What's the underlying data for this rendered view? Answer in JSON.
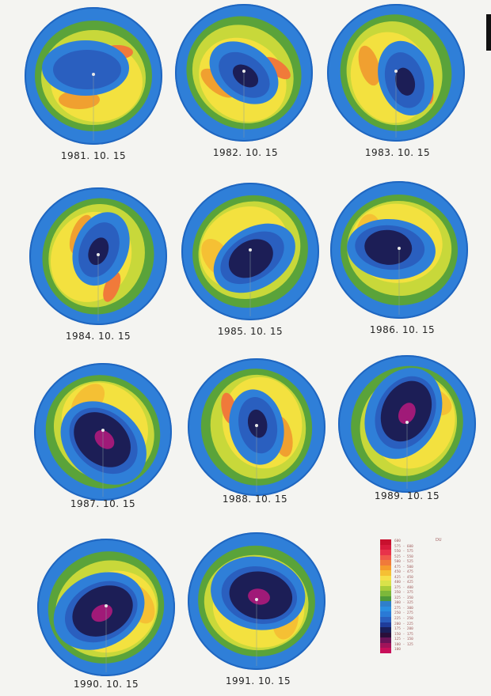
{
  "maps": [
    {
      "date": "1981. 10. 15",
      "hole": "none"
    },
    {
      "date": "1982. 10. 15",
      "hole": "small"
    },
    {
      "date": "1983. 10. 15",
      "hole": "small"
    },
    {
      "date": "1984. 10. 15",
      "hole": "small"
    },
    {
      "date": "1985. 10. 15",
      "hole": "medium"
    },
    {
      "date": "1986. 10. 15",
      "hole": "medium"
    },
    {
      "date": "1987. 10. 15",
      "hole": "large"
    },
    {
      "date": "1988. 10. 15",
      "hole": "small"
    },
    {
      "date": "1989. 10. 15",
      "hole": "large"
    },
    {
      "date": "1990. 10. 15",
      "hole": "large"
    },
    {
      "date": "1991. 10. 15",
      "hole": "large"
    }
  ],
  "legend": {
    "units": "DU",
    "levels": [
      "600",
      "575 - 600",
      "550 - 575",
      "525 - 550",
      "500 - 525",
      "475 - 500",
      "450 - 475",
      "425 - 450",
      "400 - 425",
      "375 - 400",
      "350 - 375",
      "325 - 350",
      "300 - 325",
      "275 - 300",
      "250 - 275",
      "225 - 250",
      "200 - 225",
      "175 - 200",
      "150 - 175",
      "125 - 150",
      "100 - 125",
      "100"
    ],
    "colors": [
      "#c8102e",
      "#d81b3c",
      "#e8324a",
      "#f0584a",
      "#f07a3a",
      "#f59b2d",
      "#f5c034",
      "#f5e04a",
      "#d9e24a",
      "#a8cc3a",
      "#7cb83a",
      "#4e9a3a",
      "#2f7fc9",
      "#2b8fe0",
      "#2a7ad6",
      "#2a5fbf",
      "#1f3c9a",
      "#1a1f5a",
      "#2a0f3a",
      "#6a1458",
      "#a0145a",
      "#c80f5a"
    ]
  }
}
